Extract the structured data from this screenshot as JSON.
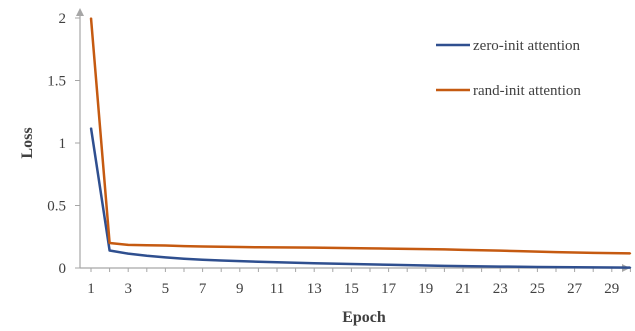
{
  "chart_data": {
    "type": "line",
    "xlabel": "Epoch",
    "ylabel": "Loss",
    "xlim": [
      1,
      30
    ],
    "ylim": [
      0,
      2
    ],
    "x_tick_labels": [
      "1",
      "3",
      "5",
      "7",
      "9",
      "11",
      "13",
      "15",
      "17",
      "19",
      "21",
      "23",
      "25",
      "27",
      "29"
    ],
    "y_tick_labels": [
      "0",
      "0.5",
      "1",
      "1.5",
      "2"
    ],
    "y_ticks": [
      0,
      0.5,
      1,
      1.5,
      2
    ],
    "grid": false,
    "legend_position": "top-right",
    "x": [
      1,
      2,
      3,
      4,
      5,
      6,
      7,
      8,
      9,
      10,
      11,
      12,
      13,
      14,
      15,
      16,
      17,
      18,
      19,
      20,
      21,
      22,
      23,
      24,
      25,
      26,
      27,
      28,
      29,
      30
    ],
    "series": [
      {
        "name": "zero-init attention",
        "color": "#2f4f8f",
        "values": [
          1.12,
          0.14,
          0.115,
          0.098,
          0.085,
          0.074,
          0.066,
          0.06,
          0.055,
          0.05,
          0.046,
          0.042,
          0.038,
          0.035,
          0.032,
          0.029,
          0.026,
          0.023,
          0.02,
          0.017,
          0.015,
          0.013,
          0.011,
          0.01,
          0.008,
          0.007,
          0.006,
          0.005,
          0.004,
          0.003
        ]
      },
      {
        "name": "rand-init attention",
        "color": "#c55a11",
        "values": [
          2.0,
          0.2,
          0.185,
          0.182,
          0.18,
          0.175,
          0.172,
          0.17,
          0.168,
          0.166,
          0.165,
          0.164,
          0.163,
          0.161,
          0.159,
          0.157,
          0.155,
          0.153,
          0.151,
          0.149,
          0.145,
          0.142,
          0.139,
          0.135,
          0.131,
          0.127,
          0.124,
          0.121,
          0.119,
          0.117
        ]
      }
    ]
  }
}
